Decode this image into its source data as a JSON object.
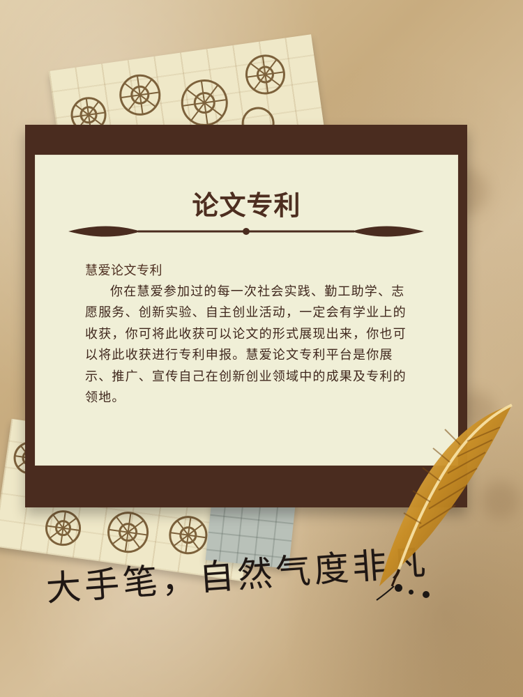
{
  "card": {
    "title": "论文专利",
    "subtitle": "慧爱论文专利",
    "body": "你在慧爱参加过的每一次社会实践、勤工助学、志愿服务、创新实验、自主创业活动，一定会有学业上的收获，你可将此收获可以论文的形式展现出来，你也可以将此收获进行专利申报。慧爱论文专利平台是你展示、推广、宣传自己在创新创业领域中的成果及专利的领地。"
  },
  "tagline": "大手笔，自然气度非凡"
}
